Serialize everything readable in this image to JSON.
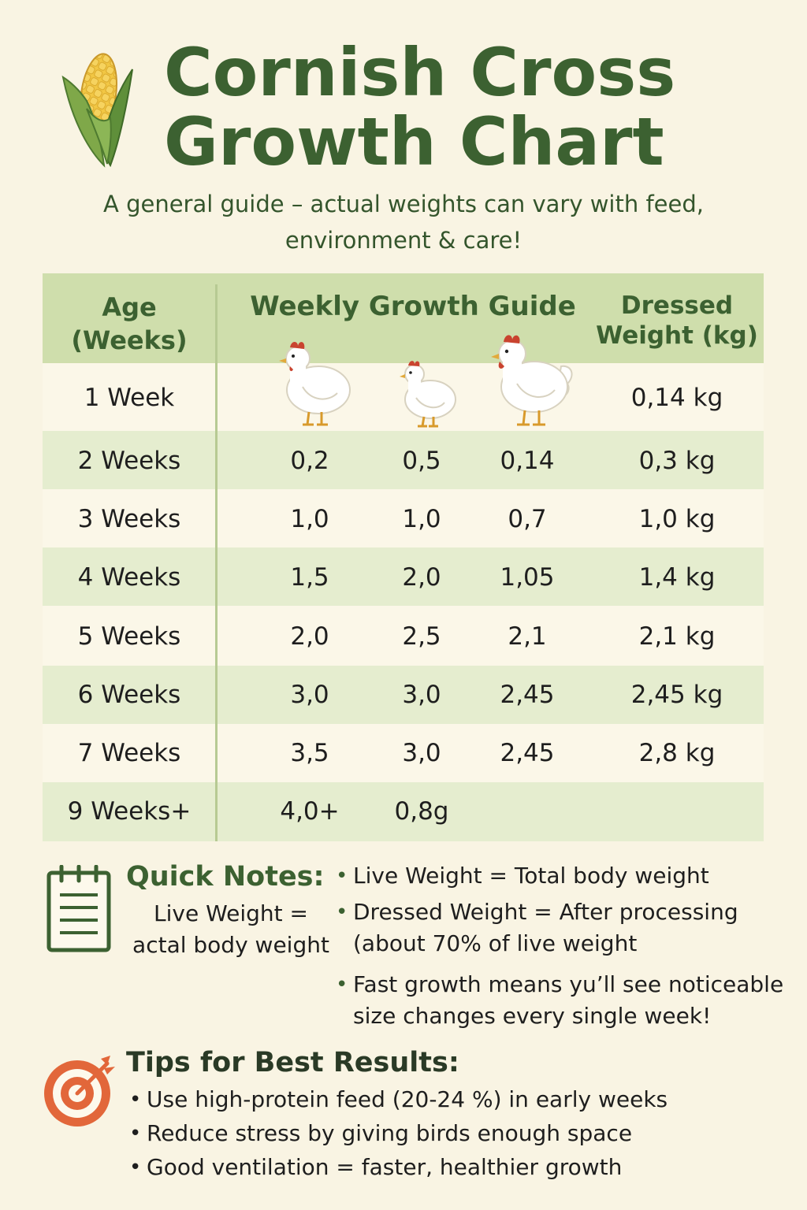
{
  "header": {
    "title_line1": "Cornish Cross",
    "title_line2": "Growth Chart",
    "subtitle_line1": "A general guide – actual weights can vary with feed,",
    "subtitle_line2": "environment & care!"
  },
  "icons": {
    "corn": "corn-icon",
    "notes": "notepad-icon",
    "tips": "target-icon",
    "chick": "chicken-icon"
  },
  "table": {
    "headers": {
      "age_line1": "Age",
      "age_line2": "(Weeks)",
      "guide": "Weekly Growth Guide",
      "dressed_line1": "Dressed",
      "dressed_line2": "Weight (kg)"
    },
    "rows": [
      {
        "age": "1 Week",
        "v1": "",
        "v2": "",
        "v3": "",
        "dressed": "0,14 kg"
      },
      {
        "age": "2 Weeks",
        "v1": "0,2",
        "v2": "0,5",
        "v3": "0,14",
        "dressed": "0,3 kg"
      },
      {
        "age": "3 Weeks",
        "v1": "1,0",
        "v2": "1,0",
        "v3": "0,7",
        "dressed": "1,0 kg"
      },
      {
        "age": "4 Weeks",
        "v1": "1,5",
        "v2": "2,0",
        "v3": "1,05",
        "dressed": "1,4 kg"
      },
      {
        "age": "5 Weeks",
        "v1": "2,0",
        "v2": "2,5",
        "v3": "2,1",
        "dressed": "2,1 kg"
      },
      {
        "age": "6 Weeks",
        "v1": "3,0",
        "v2": "3,0",
        "v3": "2,45",
        "dressed": "2,45 kg"
      },
      {
        "age": "7 Weeks",
        "v1": "3,5",
        "v2": "3,0",
        "v3": "2,45",
        "dressed": "2,8 kg"
      },
      {
        "age": "9 Weeks+",
        "v1": "4,0+",
        "v2": "0,8g",
        "v3": "",
        "dressed": ""
      }
    ]
  },
  "quick_notes": {
    "title": "Quick Notes:",
    "sub_line1": "Live Weight =",
    "sub_line2": "actal body weight",
    "bullet1": "Live Weight = Total body weight",
    "bullet2_line1": "Dressed Weight = After processing",
    "bullet2_line2": "(about 70% of live weight",
    "bullet3_line1": "Fast growth means yu’ll see noticeable",
    "bullet3_line2": "size changes every single week!"
  },
  "tips": {
    "title": "Tips for Best Results:",
    "items": [
      "Use high-protein feed (20-24 %) in early weeks",
      "Reduce stress by giving birds enough space",
      "Good ventilation = faster, healthier growth"
    ]
  }
}
